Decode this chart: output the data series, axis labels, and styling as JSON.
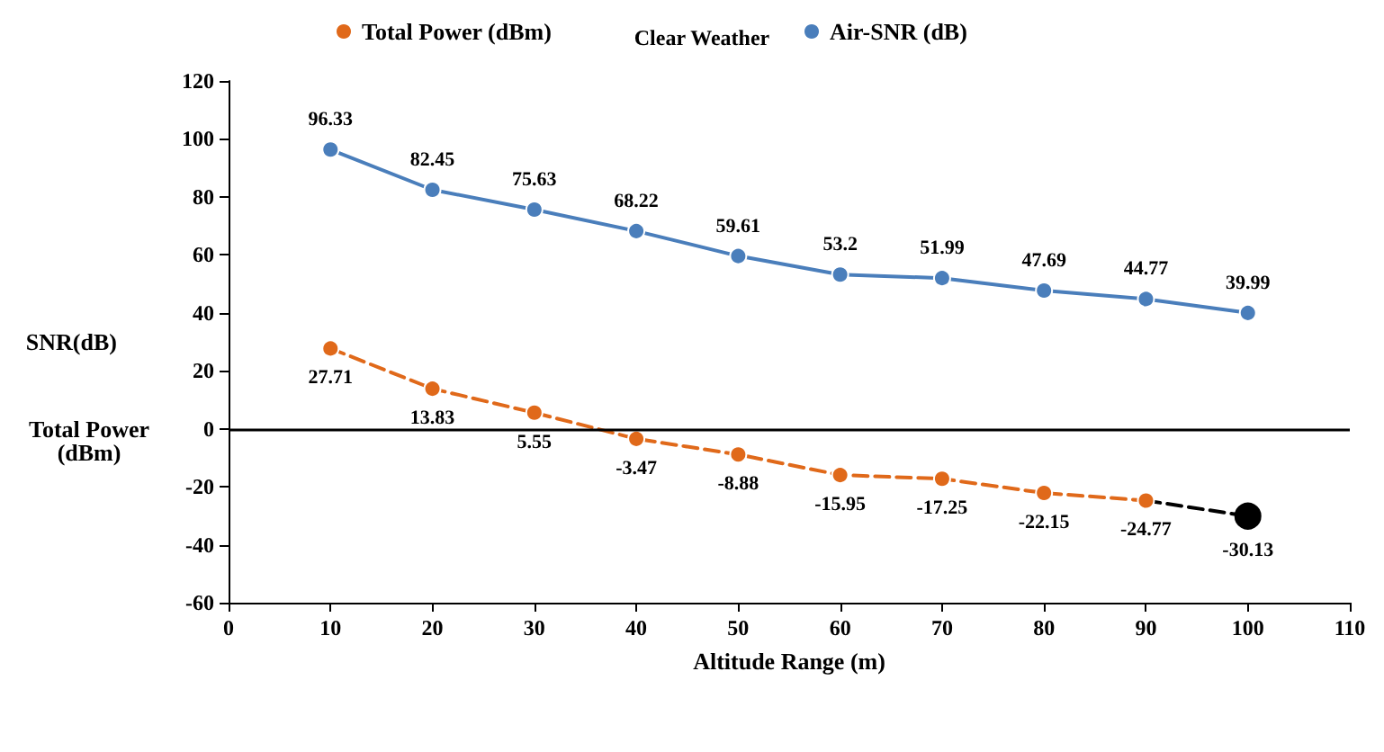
{
  "chart_data": {
    "type": "line",
    "title": "Clear Weather",
    "xlabel": "Altitude Range (m)",
    "ylabel": "SNR(dB)",
    "annotations": [
      "Total Power (dBm)"
    ],
    "x": [
      10,
      20,
      30,
      40,
      50,
      60,
      70,
      80,
      90,
      100
    ],
    "series": [
      {
        "name": "Total Power (dBm)",
        "color": "#e0691a",
        "line_style": "dashed",
        "x": [
          10,
          20,
          30,
          40,
          50,
          60,
          70,
          80,
          90
        ],
        "values": [
          27.71,
          13.83,
          5.55,
          -3.47,
          -8.88,
          -15.95,
          -17.25,
          -22.15,
          -24.77
        ],
        "value_labels": [
          "27.71",
          "13.83",
          "5.55",
          "-3.47",
          "-8.88",
          "-15.95",
          "-17.25",
          "-22.15",
          "-24.77"
        ]
      },
      {
        "color": "#000000",
        "line_style": "dashed",
        "x": [
          90,
          100
        ],
        "values": [
          -24.77,
          -30.13
        ],
        "value_labels": [
          null,
          "-30.13"
        ]
      },
      {
        "name": "Air-SNR (dB)",
        "color": "#4a7ebb",
        "line_style": "solid",
        "values": [
          96.33,
          82.45,
          75.63,
          68.22,
          59.61,
          53.2,
          51.99,
          47.69,
          44.77,
          39.99
        ],
        "value_labels": [
          "96.33",
          "82.45",
          "75.63",
          "68.22",
          "59.61",
          "53.2",
          "51.99",
          "47.69",
          "44.77",
          "39.99"
        ]
      }
    ],
    "xlim": [
      0,
      110
    ],
    "xticks": [
      0,
      10,
      20,
      30,
      40,
      50,
      60,
      70,
      80,
      90,
      100,
      110
    ],
    "ylim": [
      -60,
      120
    ],
    "yticks": [
      -60,
      -40,
      -20,
      0,
      20,
      40,
      60,
      80,
      100,
      120
    ],
    "ref_lines": [
      {
        "axis": "y",
        "value": 0,
        "color": "#000000",
        "line_style": "solid"
      }
    ],
    "grid": false,
    "legend": "top",
    "marker": "circle"
  }
}
